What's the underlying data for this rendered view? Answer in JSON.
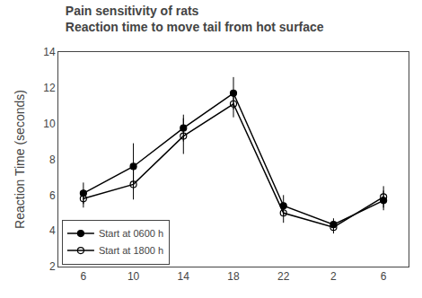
{
  "chart_data": {
    "type": "line",
    "title": "Pain sensitivity of rats",
    "subtitle": "Reaction time to move tail from hot surface",
    "y_label": "Reaction Time (seconds)",
    "categories": [
      "6",
      "10",
      "14",
      "18",
      "22",
      "2",
      "6"
    ],
    "series": [
      {
        "name": "Start at 0600 h",
        "color": "black",
        "marker": "filled",
        "line_style": "solid",
        "values": [
          6.1,
          7.6,
          9.75,
          11.7,
          5.4,
          4.35,
          5.7
        ],
        "errors": [
          0.6,
          1.3,
          0.75,
          0.9,
          0.6,
          0.35,
          0.55
        ]
      },
      {
        "name": "Start at 1800 h",
        "color": "black",
        "marker": "open",
        "line_style": "solid",
        "values": [
          5.8,
          6.6,
          9.3,
          11.1,
          5.0,
          4.2,
          5.9
        ],
        "errors": [
          0.5,
          0.85,
          1.0,
          0.75,
          0.55,
          0.35,
          0.6
        ]
      }
    ],
    "ylim": [
      2,
      14
    ],
    "yticks": [
      2,
      4,
      6,
      8,
      10,
      12,
      14
    ],
    "grid": false,
    "legend": "lower left"
  }
}
